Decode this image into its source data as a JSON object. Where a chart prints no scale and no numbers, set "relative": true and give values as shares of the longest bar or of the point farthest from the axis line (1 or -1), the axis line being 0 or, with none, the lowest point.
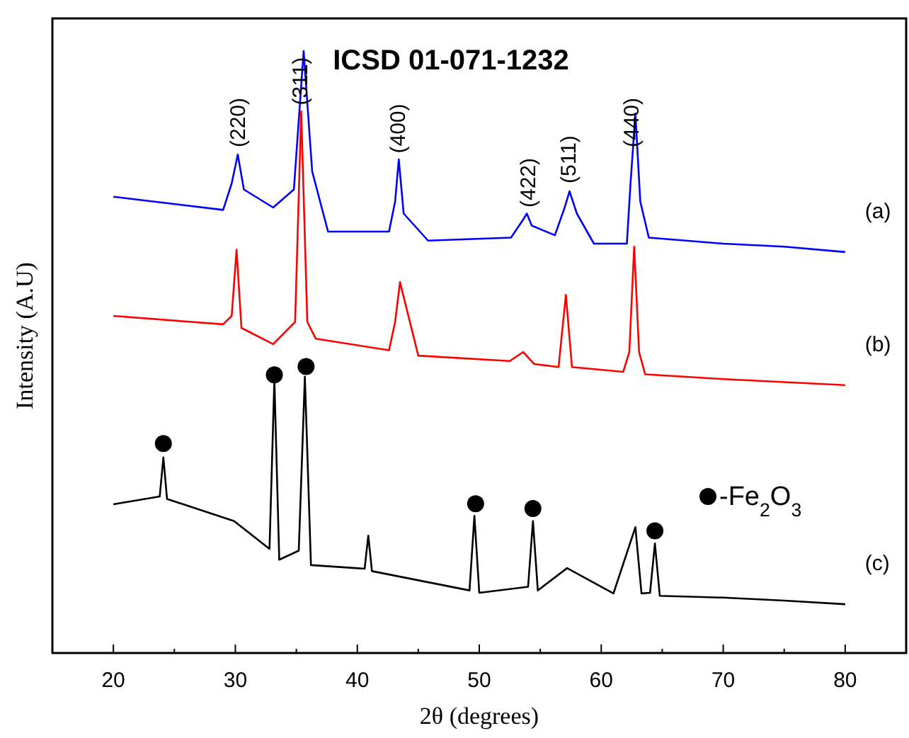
{
  "chart_data": {
    "type": "line",
    "title": "ICSD 01-071-1232",
    "xlabel": "2θ (degrees)",
    "ylabel": "Intensity (A.U)",
    "relative": true,
    "tick_labels": "x",
    "grid": false,
    "legend": "right",
    "line_style": "solid",
    "xlim": [
      15,
      85
    ],
    "xticks": [
      {
        "value": 15,
        "label": null
      },
      20,
      {
        "value": 25,
        "label": null
      },
      30,
      {
        "value": 35,
        "label": null
      },
      40,
      {
        "value": 45,
        "label": null
      },
      50,
      {
        "value": 55,
        "label": null
      },
      60,
      {
        "value": 65,
        "label": null
      },
      70,
      {
        "value": 75,
        "label": null
      },
      80,
      {
        "value": 85,
        "label": null
      }
    ],
    "annotations": [
      {
        "text": "(220)",
        "x": 30.2,
        "y": 0.84
      },
      {
        "text": "(311)",
        "x": 35.3,
        "y": 0.91
      },
      {
        "text": "(400)",
        "x": 43.3,
        "y": 0.83
      },
      {
        "text": "(422)",
        "x": 54,
        "y": 0.74
      },
      {
        "text": "(511)",
        "x": 57.3,
        "y": 0.78
      },
      {
        "text": "(440)",
        "x": 62.5,
        "y": 0.84
      }
    ],
    "series": [
      {
        "name": "(a)",
        "color": "#0000ff",
        "x": [
          20,
          29,
          29.7,
          30.2,
          30.7,
          33.1,
          34.8,
          35.6,
          36.3,
          37.6,
          42.6,
          43.1,
          43.4,
          43.8,
          45.8,
          52.6,
          53.6,
          53.9,
          54.3,
          56.2,
          57,
          57.4,
          58,
          59.4,
          62.1,
          62.4,
          62.8,
          63.2,
          63.9,
          70,
          75,
          80
        ],
        "values": [
          0.758,
          0.736,
          0.78,
          0.828,
          0.77,
          0.74,
          0.77,
          1,
          0.8,
          0.7,
          0.7,
          0.75,
          0.82,
          0.73,
          0.685,
          0.69,
          0.72,
          0.73,
          0.71,
          0.694,
          0.74,
          0.767,
          0.73,
          0.68,
          0.68,
          0.78,
          0.896,
          0.75,
          0.69,
          0.68,
          0.675,
          0.666
        ]
      },
      {
        "name": "(b)",
        "color": "#ff0000",
        "x": [
          20,
          29,
          29.7,
          30.1,
          30.5,
          33.1,
          34.9,
          35.4,
          35.9,
          36.6,
          42.6,
          43.1,
          43.5,
          45,
          52.5,
          53.6,
          54.5,
          56.5,
          57.1,
          57.6,
          61.8,
          62.3,
          62.7,
          63.1,
          63.6,
          70,
          75,
          80
        ],
        "values": [
          0.56,
          0.546,
          0.56,
          0.67,
          0.54,
          0.513,
          0.55,
          0.9,
          0.55,
          0.522,
          0.503,
          0.55,
          0.616,
          0.494,
          0.485,
          0.5,
          0.48,
          0.475,
          0.595,
          0.475,
          0.467,
          0.5,
          0.675,
          0.5,
          0.463,
          0.455,
          0.45,
          0.445
        ]
      },
      {
        "name": "(c)",
        "color": "#000000",
        "x": [
          20,
          23.8,
          24.1,
          24.4,
          29.9,
          32.8,
          33.2,
          33.6,
          35.2,
          35.7,
          36.2,
          40.6,
          40.9,
          41.2,
          49.2,
          49.6,
          50,
          54,
          54.4,
          54.8,
          57.2,
          61,
          62.8,
          63.3,
          64,
          64.4,
          64.8,
          70,
          75,
          80
        ],
        "values": [
          0.247,
          0.26,
          0.325,
          0.256,
          0.219,
          0.173,
          0.454,
          0.155,
          0.17,
          0.459,
          0.146,
          0.14,
          0.195,
          0.136,
          0.104,
          0.228,
          0.1,
          0.11,
          0.219,
          0.104,
          0.141,
          0.099,
          0.209,
          0.099,
          0.1,
          0.182,
          0.095,
          0.092,
          0.087,
          0.081
        ]
      },
      {
        "type": "scatter",
        "name": "-Fe$_{2}$O$_{3}$",
        "color": "#000000",
        "marker": "circle",
        "x": [
          24.1,
          33.2,
          35.8,
          49.7,
          54.4,
          64.4
        ],
        "values": [
          0.348,
          0.462,
          0.476,
          0.248,
          0.24,
          0.203
        ]
      }
    ]
  }
}
